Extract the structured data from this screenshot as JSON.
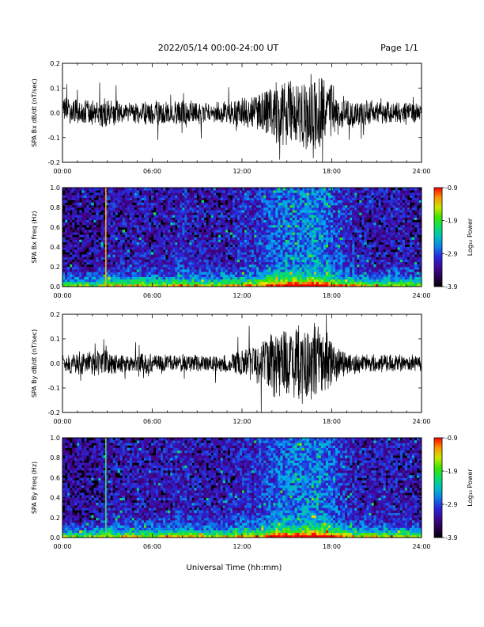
{
  "header": {
    "title": "2022/05/14  00:00-24:00 UT",
    "page": "Page 1/1"
  },
  "footer": {
    "xlabel": "Universal Time (hh:mm)"
  },
  "chart_data": [
    {
      "type": "line",
      "panel": "bx-timeseries",
      "ylabel": "SPA Bx dB/dt (nT/sec)",
      "ylim": [
        -0.2,
        0.2
      ],
      "yticks": [
        "0.2",
        "0.1",
        "0.0",
        "-0.1",
        "-0.2"
      ],
      "xlim_hours": [
        0,
        24
      ],
      "xticks": [
        "00:00",
        "06:00",
        "12:00",
        "18:00",
        "24:00"
      ],
      "series": [
        {
          "x_hours": [
            0,
            1,
            2,
            3,
            4,
            5,
            6,
            7,
            8,
            9,
            10,
            11,
            12,
            13,
            14,
            15,
            16,
            17,
            18,
            19,
            20,
            21,
            22,
            23,
            24
          ],
          "amplitude_envelope": [
            0.05,
            0.045,
            0.045,
            0.05,
            0.035,
            0.035,
            0.04,
            0.04,
            0.045,
            0.04,
            0.035,
            0.04,
            0.05,
            0.06,
            0.09,
            0.12,
            0.11,
            0.13,
            0.1,
            0.05,
            0.045,
            0.04,
            0.04,
            0.035,
            0.035
          ]
        }
      ]
    },
    {
      "type": "heatmap",
      "panel": "bx-spectrogram",
      "ylabel": "SPA Bx Freq (Hz)",
      "ylim": [
        0.0,
        1.0
      ],
      "yticks": [
        "1.0",
        "0.8",
        "0.6",
        "0.4",
        "0.2",
        "0.0"
      ],
      "xlim_hours": [
        0,
        24
      ],
      "xticks": [
        "00:00",
        "06:00",
        "12:00",
        "18:00",
        "24:00"
      ],
      "colorbar": {
        "label": "Log₁₀ Power",
        "range": [
          -3.9,
          -0.9
        ],
        "ticks": [
          "-0.9",
          "-1.9",
          "-2.9",
          "-3.9"
        ]
      },
      "activity_by_hour": [
        0.25,
        0.25,
        0.25,
        0.3,
        0.3,
        0.3,
        0.3,
        0.3,
        0.35,
        0.3,
        0.3,
        0.3,
        0.35,
        0.35,
        0.45,
        0.5,
        0.5,
        0.55,
        0.45,
        0.35,
        0.3,
        0.3,
        0.3,
        0.3,
        0.25
      ],
      "vertical_event": {
        "x_hours": 2.9,
        "color": "#ffb000"
      }
    },
    {
      "type": "line",
      "panel": "by-timeseries",
      "ylabel": "SPA By dB/dt (nT/sec)",
      "ylim": [
        -0.2,
        0.2
      ],
      "yticks": [
        "0.2",
        "0.1",
        "0.0",
        "-0.1",
        "-0.2"
      ],
      "xlim_hours": [
        0,
        24
      ],
      "xticks": [
        "00:00",
        "06:00",
        "12:00",
        "18:00",
        "24:00"
      ],
      "series": [
        {
          "x_hours": [
            0,
            1,
            2,
            3,
            4,
            5,
            6,
            7,
            8,
            9,
            10,
            11,
            12,
            13,
            14,
            15,
            16,
            17,
            18,
            19,
            20,
            21,
            22,
            23,
            24
          ],
          "amplitude_envelope": [
            0.03,
            0.04,
            0.04,
            0.045,
            0.03,
            0.03,
            0.035,
            0.03,
            0.03,
            0.03,
            0.025,
            0.03,
            0.045,
            0.07,
            0.11,
            0.12,
            0.13,
            0.14,
            0.08,
            0.04,
            0.03,
            0.03,
            0.03,
            0.03,
            0.03
          ]
        }
      ]
    },
    {
      "type": "heatmap",
      "panel": "by-spectrogram",
      "ylabel": "SPA By Freq (Hz)",
      "ylim": [
        0.0,
        1.0
      ],
      "yticks": [
        "1.0",
        "0.8",
        "0.6",
        "0.4",
        "0.2",
        "0.0"
      ],
      "xlim_hours": [
        0,
        24
      ],
      "xticks": [
        "00:00",
        "06:00",
        "12:00",
        "18:00",
        "24:00"
      ],
      "colorbar": {
        "label": "Log₁₀ Power",
        "range": [
          -3.9,
          -0.9
        ],
        "ticks": [
          "-0.9",
          "-1.9",
          "-2.9",
          "-3.9"
        ]
      },
      "activity_by_hour": [
        0.25,
        0.25,
        0.25,
        0.3,
        0.3,
        0.3,
        0.3,
        0.3,
        0.35,
        0.3,
        0.3,
        0.3,
        0.35,
        0.35,
        0.45,
        0.5,
        0.5,
        0.55,
        0.45,
        0.35,
        0.3,
        0.3,
        0.3,
        0.3,
        0.25
      ],
      "vertical_event": {
        "x_hours": 2.9,
        "color": "#40e060"
      }
    }
  ]
}
